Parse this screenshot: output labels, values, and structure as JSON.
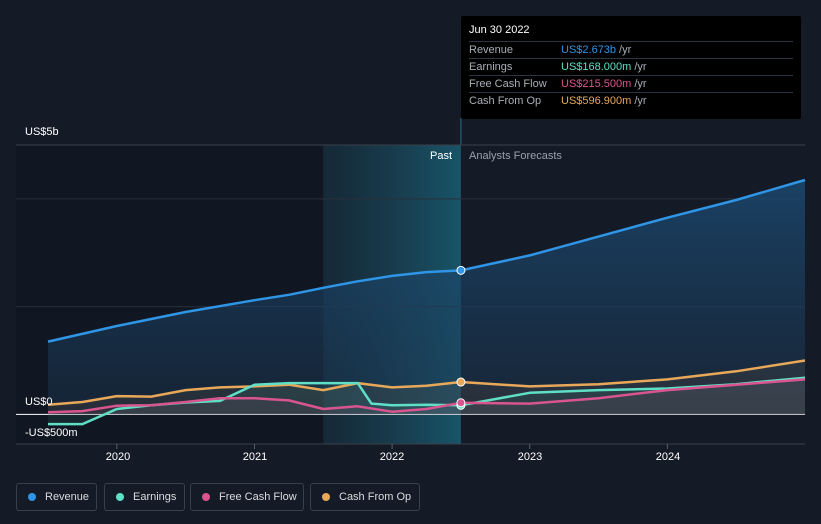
{
  "tooltip": {
    "date": "Jun 30 2022",
    "rows": [
      {
        "label": "Revenue",
        "value": "US$2.673b",
        "unit": "/yr",
        "color": "#2f95e6"
      },
      {
        "label": "Earnings",
        "value": "US$168.000m",
        "unit": "/yr",
        "color": "#5fe0c6"
      },
      {
        "label": "Free Cash Flow",
        "value": "US$215.500m",
        "unit": "/yr",
        "color": "#d9558f"
      },
      {
        "label": "Cash From Op",
        "value": "US$596.900m",
        "unit": "/yr",
        "color": "#e8a85a"
      }
    ]
  },
  "sections": {
    "past": "Past",
    "forecast": "Analysts Forecasts"
  },
  "legend": [
    {
      "label": "Revenue",
      "color": "#2f95e6"
    },
    {
      "label": "Earnings",
      "color": "#5fe0c6"
    },
    {
      "label": "Free Cash Flow",
      "color": "#d9558f"
    },
    {
      "label": "Cash From Op",
      "color": "#e8a85a"
    }
  ],
  "chart_data": {
    "type": "line",
    "y_labels": [
      "US$5b",
      "US$0",
      "-US$500m"
    ],
    "x_tick_labels": [
      "2020",
      "2021",
      "2022",
      "2023",
      "2024"
    ],
    "x_ticks": [
      2020.0,
      2021.0,
      2022.0,
      2023.0,
      2024.0
    ],
    "xlim": [
      2019.5,
      2025.0
    ],
    "ylim": [
      -0.55,
      5.0
    ],
    "past_end": 2022.5,
    "highlight_start": 2021.5,
    "series": [
      {
        "name": "Revenue",
        "color": "#2f95e6",
        "fill": true,
        "x": [
          2019.5,
          2020.0,
          2020.5,
          2021.0,
          2021.25,
          2021.5,
          2021.75,
          2022.0,
          2022.25,
          2022.5,
          2023.0,
          2023.5,
          2024.0,
          2024.5,
          2025.0
        ],
        "y": [
          1.35,
          1.64,
          1.9,
          2.12,
          2.22,
          2.35,
          2.47,
          2.57,
          2.64,
          2.673,
          2.95,
          3.3,
          3.65,
          3.98,
          4.35
        ]
      },
      {
        "name": "Cash From Op",
        "color": "#e8a85a",
        "fill": false,
        "x": [
          2019.5,
          2019.75,
          2020.0,
          2020.25,
          2020.5,
          2020.75,
          2021.0,
          2021.25,
          2021.5,
          2021.75,
          2022.0,
          2022.25,
          2022.5,
          2023.0,
          2023.5,
          2024.0,
          2024.5,
          2025.0
        ],
        "y": [
          0.18,
          0.23,
          0.34,
          0.33,
          0.45,
          0.5,
          0.52,
          0.55,
          0.45,
          0.58,
          0.5,
          0.53,
          0.6,
          0.52,
          0.56,
          0.65,
          0.8,
          1.0
        ]
      },
      {
        "name": "Earnings",
        "color": "#5fe0c6",
        "fill": false,
        "x": [
          2019.5,
          2019.75,
          2020.0,
          2020.25,
          2020.5,
          2020.75,
          2021.0,
          2021.25,
          2021.5,
          2021.75,
          2021.85,
          2022.0,
          2022.25,
          2022.5,
          2023.0,
          2023.5,
          2024.0,
          2024.5,
          2025.0
        ],
        "y": [
          -0.18,
          -0.18,
          0.1,
          0.17,
          0.22,
          0.25,
          0.55,
          0.58,
          0.58,
          0.58,
          0.2,
          0.17,
          0.18,
          0.168,
          0.4,
          0.45,
          0.48,
          0.56,
          0.68
        ]
      },
      {
        "name": "Free Cash Flow",
        "color": "#d9558f",
        "fill": false,
        "x": [
          2019.5,
          2019.75,
          2020.0,
          2020.25,
          2020.5,
          2020.75,
          2021.0,
          2021.25,
          2021.5,
          2021.75,
          2022.0,
          2022.25,
          2022.5,
          2023.0,
          2023.5,
          2024.0,
          2024.5,
          2025.0
        ],
        "y": [
          0.04,
          0.06,
          0.16,
          0.17,
          0.23,
          0.3,
          0.3,
          0.26,
          0.1,
          0.15,
          0.05,
          0.1,
          0.2155,
          0.2,
          0.3,
          0.45,
          0.55,
          0.65
        ]
      }
    ]
  }
}
